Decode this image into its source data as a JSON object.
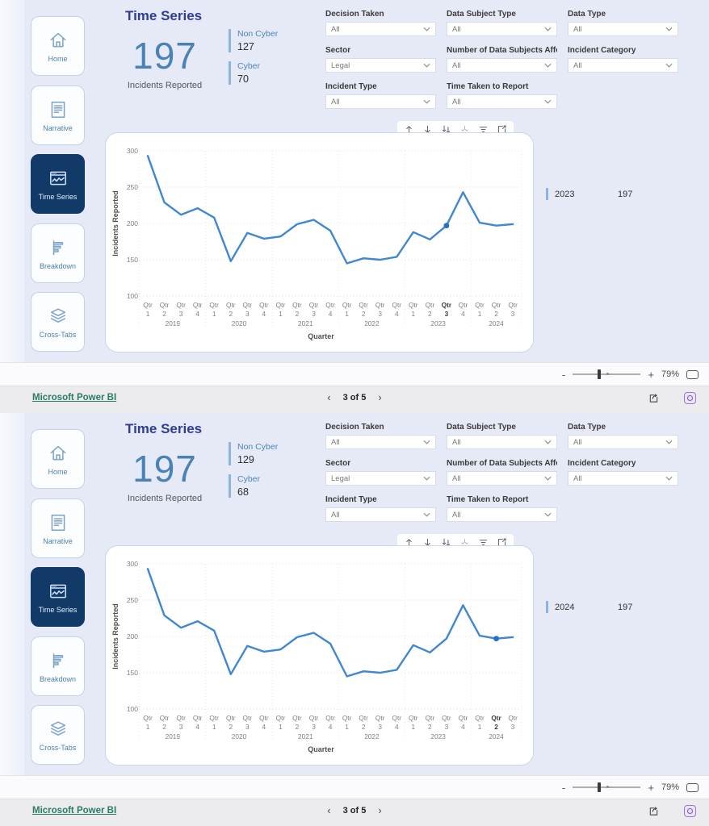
{
  "theme": {
    "page_background": "#e6eaf6",
    "sidebar_selected": "#123a69",
    "title_color": "#2f3d94",
    "kpi_color": "#4a82b8",
    "line_color": "#3f87d1",
    "marker_color": "#2a6fc4",
    "link_color": "#2a7a68",
    "powerbi_badge_color": "#9a79cf"
  },
  "sidebar": {
    "items": [
      {
        "label": "Home",
        "icon": "home-icon",
        "selected": false
      },
      {
        "label": "Narrative",
        "icon": "narrative-icon",
        "selected": false
      },
      {
        "label": "Time Series",
        "icon": "time-series-icon",
        "selected": true
      },
      {
        "label": "Breakdown",
        "icon": "breakdown-icon",
        "selected": false
      },
      {
        "label": "Cross-Tabs",
        "icon": "cross-tabs-icon",
        "selected": false
      }
    ]
  },
  "filters": {
    "items": [
      {
        "label": "Decision Taken",
        "value": "All"
      },
      {
        "label": "Data Subject Type",
        "value": "All"
      },
      {
        "label": "Data Type",
        "value": "All"
      },
      {
        "label": "Sector",
        "value": "Legal"
      },
      {
        "label": "Number of Data Subjects Affe...",
        "value": "All"
      },
      {
        "label": "Incident Category",
        "value": "All"
      },
      {
        "label": "Incident Type",
        "value": "All"
      },
      {
        "label": "Time Taken to Report",
        "value": "All"
      }
    ]
  },
  "visual_toolbar": {
    "icons": [
      {
        "name": "drill-up",
        "disabled": false
      },
      {
        "name": "drill-down",
        "disabled": false
      },
      {
        "name": "expand-all-down",
        "disabled": false
      },
      {
        "name": "go-to-next-level",
        "disabled": true
      },
      {
        "name": "filter",
        "disabled": false
      },
      {
        "name": "focus-mode",
        "disabled": false
      }
    ]
  },
  "controls": {
    "zoom_out": "-",
    "zoom_in": "+",
    "prev": "‹",
    "next": "›"
  },
  "reports": [
    {
      "title": "Time Series",
      "kpi": {
        "value": "197",
        "label": "Incidents Reported"
      },
      "breakdown": [
        {
          "label": "Non Cyber",
          "value": "127"
        },
        {
          "label": "Cyber",
          "value": "70"
        }
      ],
      "year_summary": {
        "year": "2023",
        "value": "197"
      },
      "footer": {
        "zoom_level": "79%",
        "brand_link": "Microsoft Power BI",
        "page_indicator": "3 of 5"
      }
    },
    {
      "title": "Time Series",
      "kpi": {
        "value": "197",
        "label": "Incidents Reported"
      },
      "breakdown": [
        {
          "label": "Non Cyber",
          "value": "129"
        },
        {
          "label": "Cyber",
          "value": "68"
        }
      ],
      "year_summary": {
        "year": "2024",
        "value": "197"
      },
      "footer": {
        "zoom_level": "79%",
        "brand_link": "Microsoft Power BI",
        "page_indicator": "3 of 5"
      }
    }
  ],
  "chart_data": [
    {
      "type": "line",
      "title": "",
      "xlabel": "Quarter",
      "ylabel": "Incidents Reported",
      "ylim": [
        100,
        300
      ],
      "yticks": [
        100,
        150,
        200,
        250,
        300
      ],
      "grid": true,
      "legend": "none",
      "years": [
        {
          "year": "2019",
          "quarters": [
            "1",
            "2",
            "3",
            "4"
          ]
        },
        {
          "year": "2020",
          "quarters": [
            "1",
            "2",
            "3",
            "4"
          ]
        },
        {
          "year": "2021",
          "quarters": [
            "1",
            "2",
            "3",
            "4"
          ]
        },
        {
          "year": "2022",
          "quarters": [
            "1",
            "2",
            "3",
            "4"
          ]
        },
        {
          "year": "2023",
          "quarters": [
            "1",
            "2",
            "3",
            "4"
          ]
        },
        {
          "year": "2024",
          "quarters": [
            "1",
            "2",
            "3"
          ]
        }
      ],
      "series": [
        {
          "name": "Incidents Reported",
          "values": [
            293,
            229,
            212,
            221,
            208,
            148,
            187,
            179,
            182,
            199,
            205,
            190,
            145,
            152,
            150,
            154,
            188,
            178,
            197,
            243,
            201,
            197,
            199
          ]
        }
      ],
      "selected": {
        "index": 18,
        "year": "2023",
        "quarter": "Qtr 3",
        "value": 197
      }
    },
    {
      "type": "line",
      "title": "",
      "xlabel": "Quarter",
      "ylabel": "Incidents Reported",
      "ylim": [
        100,
        300
      ],
      "yticks": [
        100,
        150,
        200,
        250,
        300
      ],
      "grid": true,
      "legend": "none",
      "years": [
        {
          "year": "2019",
          "quarters": [
            "1",
            "2",
            "3",
            "4"
          ]
        },
        {
          "year": "2020",
          "quarters": [
            "1",
            "2",
            "3",
            "4"
          ]
        },
        {
          "year": "2021",
          "quarters": [
            "1",
            "2",
            "3",
            "4"
          ]
        },
        {
          "year": "2022",
          "quarters": [
            "1",
            "2",
            "3",
            "4"
          ]
        },
        {
          "year": "2023",
          "quarters": [
            "1",
            "2",
            "3",
            "4"
          ]
        },
        {
          "year": "2024",
          "quarters": [
            "1",
            "2",
            "3"
          ]
        }
      ],
      "series": [
        {
          "name": "Incidents Reported",
          "values": [
            293,
            229,
            212,
            221,
            208,
            148,
            187,
            179,
            182,
            199,
            205,
            190,
            145,
            152,
            150,
            154,
            188,
            178,
            197,
            243,
            201,
            197,
            199
          ]
        }
      ],
      "selected": {
        "index": 21,
        "year": "2024",
        "quarter": "Qtr 2",
        "value": 197
      }
    }
  ]
}
